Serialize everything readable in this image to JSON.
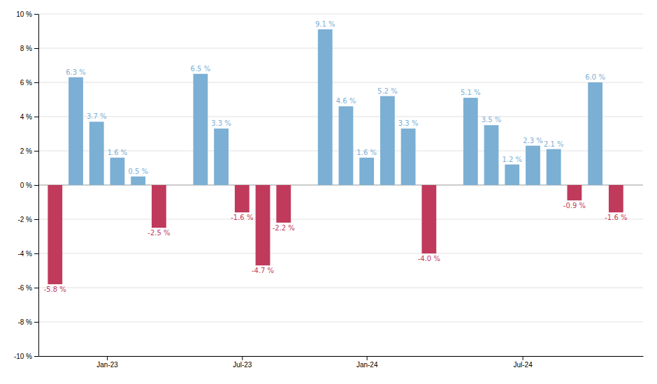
{
  "chart_data": {
    "type": "bar",
    "x": [
      0,
      1,
      2,
      3,
      4,
      5,
      7,
      8,
      9,
      10,
      11,
      13,
      14,
      15,
      16,
      17,
      18,
      20,
      21,
      22,
      23,
      24,
      25,
      26,
      27
    ],
    "values": [
      -5.8,
      6.3,
      3.7,
      1.6,
      0.5,
      -2.5,
      6.5,
      3.3,
      -1.6,
      -4.7,
      -2.2,
      9.1,
      4.6,
      1.6,
      5.2,
      3.3,
      -4.0,
      5.1,
      3.5,
      1.2,
      2.3,
      2.1,
      -0.9,
      6.0,
      -1.6
    ],
    "value_labels": [
      "-5.8 %",
      "6.3 %",
      "3.7 %",
      "1.6 %",
      "0.5 %",
      "-2.5 %",
      "6.5 %",
      "3.3 %",
      "-1.6 %",
      "-4.7 %",
      "-2.2 %",
      "9.1 %",
      "4.6 %",
      "1.6 %",
      "5.2 %",
      "3.3 %",
      "-4.0 %",
      "5.1 %",
      "3.5 %",
      "1.2 %",
      "2.3 %",
      "2.1 %",
      "-0.9 %",
      "6.0 %",
      "-1.6 %"
    ],
    "colors": [
      "#C03A5B",
      "#7BAFD4",
      "#7BAFD4",
      "#7BAFD4",
      "#7BAFD4",
      "#C03A5B",
      "#7BAFD4",
      "#7BAFD4",
      "#C03A5B",
      "#C03A5B",
      "#C03A5B",
      "#7BAFD4",
      "#7BAFD4",
      "#7BAFD4",
      "#7BAFD4",
      "#7BAFD4",
      "#C03A5B",
      "#7BAFD4",
      "#7BAFD4",
      "#7BAFD4",
      "#7BAFD4",
      "#7BAFD4",
      "#C03A5B",
      "#7BAFD4",
      "#C03A5B"
    ],
    "xlim": [
      -0.8,
      28.3
    ],
    "xticks": [
      {
        "value": 2.5,
        "label": "Jan-23"
      },
      {
        "value": 9.0,
        "label": "Jul-23"
      },
      {
        "value": 15.0,
        "label": "Jan-24"
      },
      {
        "value": 22.5,
        "label": "Jul-24"
      }
    ],
    "ylim": [
      -10,
      10
    ],
    "yticks": [
      {
        "value": -10,
        "label": "-10 %"
      },
      {
        "value": -8,
        "label": "-8 %"
      },
      {
        "value": -6,
        "label": "-6 %"
      },
      {
        "value": -4,
        "label": "-4 %"
      },
      {
        "value": -2,
        "label": "-2 %"
      },
      {
        "value": 0,
        "label": "0 %"
      },
      {
        "value": 2,
        "label": "2 %"
      },
      {
        "value": 4,
        "label": "4 %"
      },
      {
        "value": 6,
        "label": "6 %"
      },
      {
        "value": 8,
        "label": "8 %"
      },
      {
        "value": 10,
        "label": "10 %"
      }
    ],
    "grid": true,
    "data_labels": true
  }
}
